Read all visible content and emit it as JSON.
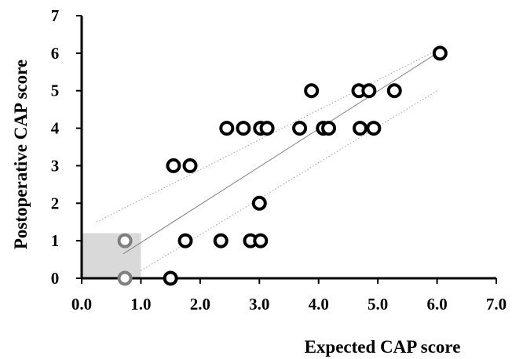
{
  "chart_data": {
    "type": "scatter",
    "xlabel": "Expected CAP score",
    "ylabel": "Postoperative CAP score",
    "xlim": [
      0,
      7
    ],
    "ylim": [
      0,
      7
    ],
    "x_ticks": [
      "0.0",
      "1.0",
      "2.0",
      "3.0",
      "4.0",
      "5.0",
      "6.0",
      "7.0"
    ],
    "y_ticks": [
      "0",
      "1",
      "2",
      "3",
      "4",
      "5",
      "6",
      "7"
    ],
    "grid": false,
    "shaded_region": {
      "x": [
        0,
        1
      ],
      "y": [
        0,
        1.2
      ],
      "color": "#d9d9d9"
    },
    "regression_line": {
      "x": [
        0.7,
        6.0
      ],
      "y": [
        0.65,
        6.0
      ],
      "color": "#808080"
    },
    "confidence_lines": [
      {
        "x": [
          0.25,
          5.9
        ],
        "y": [
          1.5,
          6.0
        ],
        "style": "dotted",
        "color": "#a0a0a0"
      },
      {
        "x": [
          1.0,
          6.0
        ],
        "y": [
          0.2,
          5.0
        ],
        "style": "dotted",
        "color": "#a0a0a0"
      }
    ],
    "series": [
      {
        "color": "#000000",
        "points": [
          {
            "x": 6.05,
            "y": 6
          },
          {
            "x": 3.88,
            "y": 5
          },
          {
            "x": 4.68,
            "y": 5
          },
          {
            "x": 4.85,
            "y": 5
          },
          {
            "x": 5.28,
            "y": 5
          },
          {
            "x": 2.45,
            "y": 4
          },
          {
            "x": 2.73,
            "y": 4
          },
          {
            "x": 3.02,
            "y": 4
          },
          {
            "x": 3.13,
            "y": 4
          },
          {
            "x": 3.68,
            "y": 4
          },
          {
            "x": 4.08,
            "y": 4
          },
          {
            "x": 4.17,
            "y": 4
          },
          {
            "x": 4.7,
            "y": 4
          },
          {
            "x": 4.93,
            "y": 4
          },
          {
            "x": 1.55,
            "y": 3
          },
          {
            "x": 1.83,
            "y": 3
          },
          {
            "x": 3.0,
            "y": 2
          },
          {
            "x": 1.75,
            "y": 1
          },
          {
            "x": 2.35,
            "y": 1
          },
          {
            "x": 2.85,
            "y": 1
          },
          {
            "x": 3.02,
            "y": 1
          },
          {
            "x": 1.5,
            "y": 0
          }
        ]
      },
      {
        "color": "#7f7f7f",
        "points": [
          {
            "x": 0.73,
            "y": 1
          },
          {
            "x": 0.73,
            "y": 0
          }
        ]
      }
    ]
  }
}
